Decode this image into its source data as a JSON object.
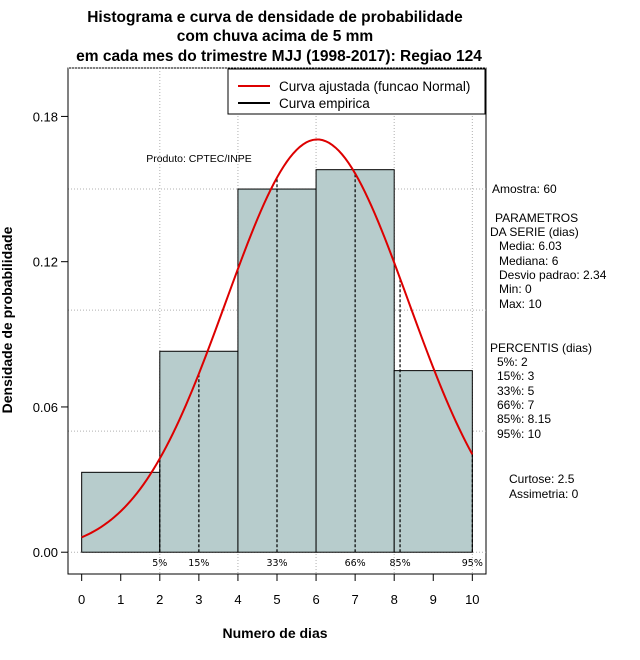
{
  "chart_data": {
    "type": "bar",
    "title_lines": [
      "Histograma e curva de densidade de probabilidade",
      "com chuva acima de 5 mm",
      "em cada mes do trimestre MJJ (1998-2017): Regiao 124"
    ],
    "xlabel": "Numero de dias",
    "ylabel": "Densidade de probabilidade",
    "xlim": [
      -0.35,
      10.35
    ],
    "ylim": [
      -0.009,
      0.2
    ],
    "x_ticks": [
      0,
      1,
      2,
      3,
      4,
      5,
      6,
      7,
      8,
      9,
      10
    ],
    "x_tick_labels": [
      "0",
      "1",
      "2",
      "3",
      "4",
      "5",
      "6",
      "7",
      "8",
      "9",
      "10"
    ],
    "y_ticks": [
      0,
      0.06,
      0.12,
      0.18
    ],
    "y_tick_labels": [
      "0.00",
      "0.06",
      "0.12",
      "0.18"
    ],
    "grid_y": [
      0,
      0.05,
      0.1,
      0.15,
      0.2
    ],
    "grid_x": [
      2,
      4,
      6,
      8,
      10
    ],
    "bars": [
      {
        "x0": 0,
        "x1": 2,
        "density": 0.033
      },
      {
        "x0": 2,
        "x1": 4,
        "density": 0.083
      },
      {
        "x0": 4,
        "x1": 6,
        "density": 0.15
      },
      {
        "x0": 6,
        "x1": 8,
        "density": 0.158
      },
      {
        "x0": 8,
        "x1": 10,
        "density": 0.075
      }
    ],
    "bar_color": "#b7cccc",
    "normal_curve": {
      "mean": 6.03,
      "sd": 2.34,
      "color": "#dd0000",
      "x_range": [
        0,
        10
      ]
    },
    "percentiles": [
      {
        "label": "5%",
        "x": 2
      },
      {
        "label": "15%",
        "x": 3
      },
      {
        "label": "33%",
        "x": 5
      },
      {
        "label": "66%",
        "x": 7
      },
      {
        "label": "85%",
        "x": 8.15
      },
      {
        "label": "95%",
        "x": 10
      }
    ],
    "legend": {
      "position": "top-right",
      "entries": [
        {
          "label": "Curva ajustada (funcao Normal)",
          "color": "#dd0000"
        },
        {
          "label": "Curva empirica",
          "color": "#000000"
        }
      ]
    },
    "credit": "Produto: CPTEC/INPE"
  },
  "side_panel": {
    "amostra": "Amostra: 60",
    "param_title_1": "PARAMETROS",
    "param_title_2": "DA SERIE (dias)",
    "params": [
      "Media: 6.03",
      "Mediana: 6",
      "Desvio padrao: 2.34",
      "Min: 0",
      "Max: 10"
    ],
    "pct_title": "PERCENTIS (dias)",
    "pct_values": [
      "5%: 2",
      "15%: 3",
      "33%: 5",
      "66%: 7",
      "85%: 8.15",
      "95%: 10"
    ],
    "curtose": "Curtose: 2.5",
    "assimetria": "Assimetria: 0"
  }
}
